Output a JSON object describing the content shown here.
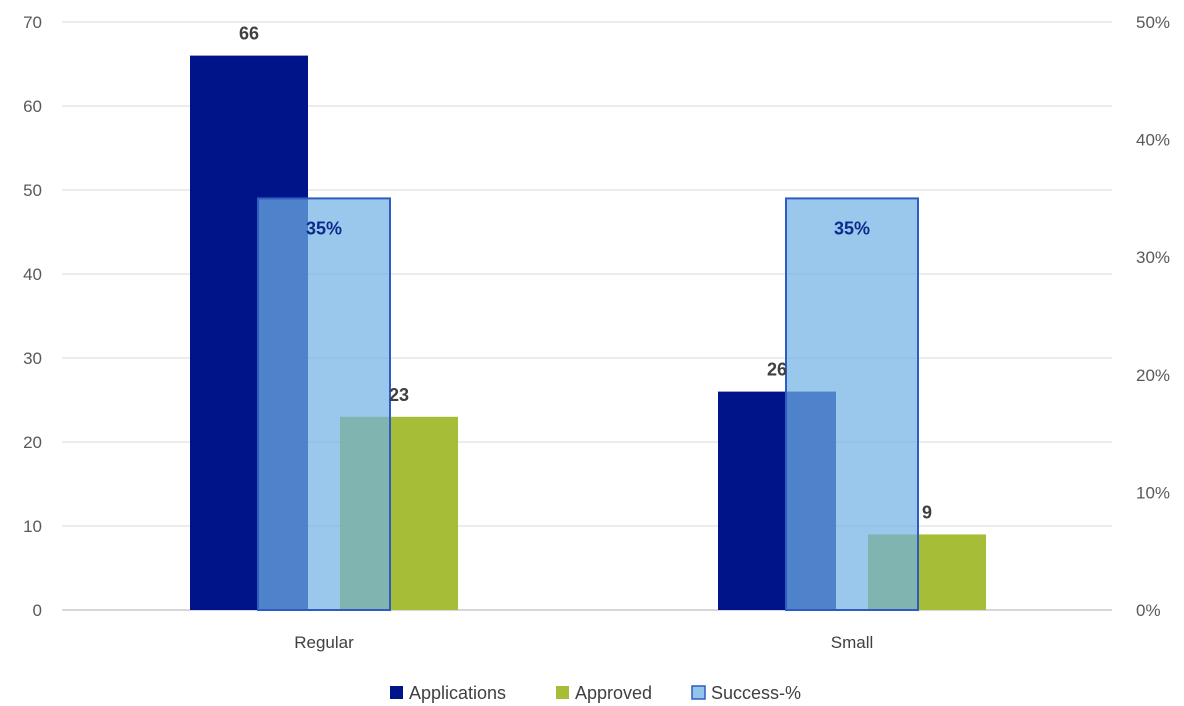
{
  "chart_data": {
    "type": "bar",
    "categories": [
      "Regular",
      "Small"
    ],
    "series": [
      {
        "name": "Applications",
        "axis": "left",
        "values": [
          66,
          26
        ],
        "labels": [
          "66",
          "26"
        ],
        "color": "#001489"
      },
      {
        "name": "Approved",
        "axis": "left",
        "values": [
          23,
          9
        ],
        "labels": [
          "23",
          "9"
        ],
        "color": "#a6bd37"
      },
      {
        "name": "Success-%",
        "axis": "right",
        "values": [
          0.35,
          0.35
        ],
        "labels": [
          "35%",
          "35%"
        ],
        "color": "#6fb1e6",
        "border_color": "#2f5cc3"
      }
    ],
    "y_left": {
      "min": 0,
      "max": 70,
      "ticks": [
        "0",
        "10",
        "20",
        "30",
        "40",
        "50",
        "60",
        "70"
      ]
    },
    "y_right": {
      "min": 0,
      "max": 0.5,
      "ticks": [
        "0%",
        "10%",
        "20%",
        "30%",
        "40%",
        "50%"
      ]
    },
    "grid": true,
    "legend_position": "bottom"
  }
}
